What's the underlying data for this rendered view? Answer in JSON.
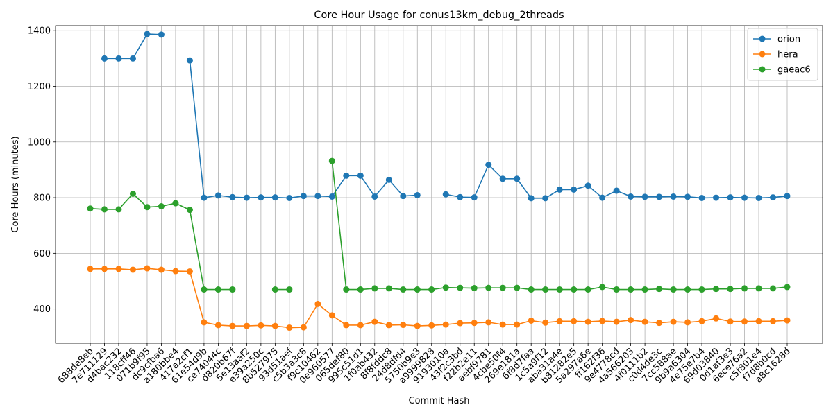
{
  "chart_data": {
    "type": "line",
    "title": "Core Hour Usage for conus13km_debug_2threads",
    "xlabel": "Commit Hash",
    "ylabel": "Core Hours (minutes)",
    "ylim": [
      277,
      1418
    ],
    "yticks": [
      400,
      600,
      800,
      1000,
      1200,
      1400
    ],
    "grid": true,
    "legend_position": "top-right",
    "categories": [
      "688de8eb",
      "7e711129",
      "d4bac232",
      "118cff46",
      "071b9f95",
      "dc9cfba6",
      "a180bbe4",
      "417a2cf1",
      "61e54d9b",
      "ce74044c",
      "d820b67f",
      "5e13aaf2",
      "e39a250c",
      "8b527975",
      "93d51aef",
      "c5b3a3c8",
      "f9c10462",
      "0e960577",
      "065def80",
      "995c51d1",
      "1f0ab432",
      "8f8fddc8",
      "24d8dfd4",
      "5750b9e3",
      "a9999828",
      "9193010a",
      "43f2c3bd",
      "f22b2e11",
      "aebf9781",
      "4cbe50f4",
      "269e181a",
      "6f8d7faa",
      "1c5a9f12",
      "aba31a4e",
      "b81282e5",
      "5a297a6e",
      "ff162f36",
      "9e4778cd",
      "4a566203",
      "4f0111b2",
      "c0d4de3c",
      "7cc588ae",
      "9b9a6304",
      "4e75e7b4",
      "69d03840",
      "0d1af3e3",
      "6ece76a2",
      "c5f801e4",
      "f7d8b0cd",
      "a8c1628d"
    ],
    "series": [
      {
        "name": "orion",
        "color": "#1f77b4",
        "values": [
          null,
          1300,
          1300,
          1300,
          1388,
          1386,
          null,
          1293,
          800,
          808,
          802,
          800,
          801,
          801,
          799,
          806,
          806,
          804,
          879,
          879,
          804,
          864,
          806,
          809,
          null,
          812,
          802,
          801,
          918,
          868,
          868,
          798,
          798,
          829,
          829,
          843,
          800,
          825,
          804,
          803,
          803,
          804,
          803,
          799,
          800,
          801,
          800,
          799,
          801,
          806
        ]
      },
      {
        "name": "hera",
        "color": "#ff7f0e",
        "values": [
          544,
          544,
          544,
          541,
          546,
          541,
          536,
          535,
          352,
          342,
          339,
          339,
          341,
          339,
          333,
          334,
          418,
          377,
          342,
          342,
          354,
          342,
          343,
          339,
          341,
          344,
          349,
          350,
          352,
          344,
          344,
          358,
          351,
          356,
          356,
          354,
          357,
          354,
          360,
          354,
          350,
          354,
          352,
          356,
          366,
          355,
          355,
          356,
          356,
          359
        ]
      },
      {
        "name": "gaeac6",
        "color": "#2ca02c",
        "values": [
          761,
          758,
          758,
          814,
          766,
          769,
          780,
          756,
          470,
          470,
          470,
          null,
          null,
          470,
          470,
          null,
          null,
          932,
          470,
          470,
          474,
          474,
          470,
          470,
          470,
          477,
          476,
          475,
          476,
          476,
          476,
          470,
          470,
          470,
          470,
          470,
          479,
          470,
          470,
          470,
          472,
          470,
          470,
          470,
          472,
          472,
          474,
          474,
          474,
          479
        ]
      }
    ]
  }
}
